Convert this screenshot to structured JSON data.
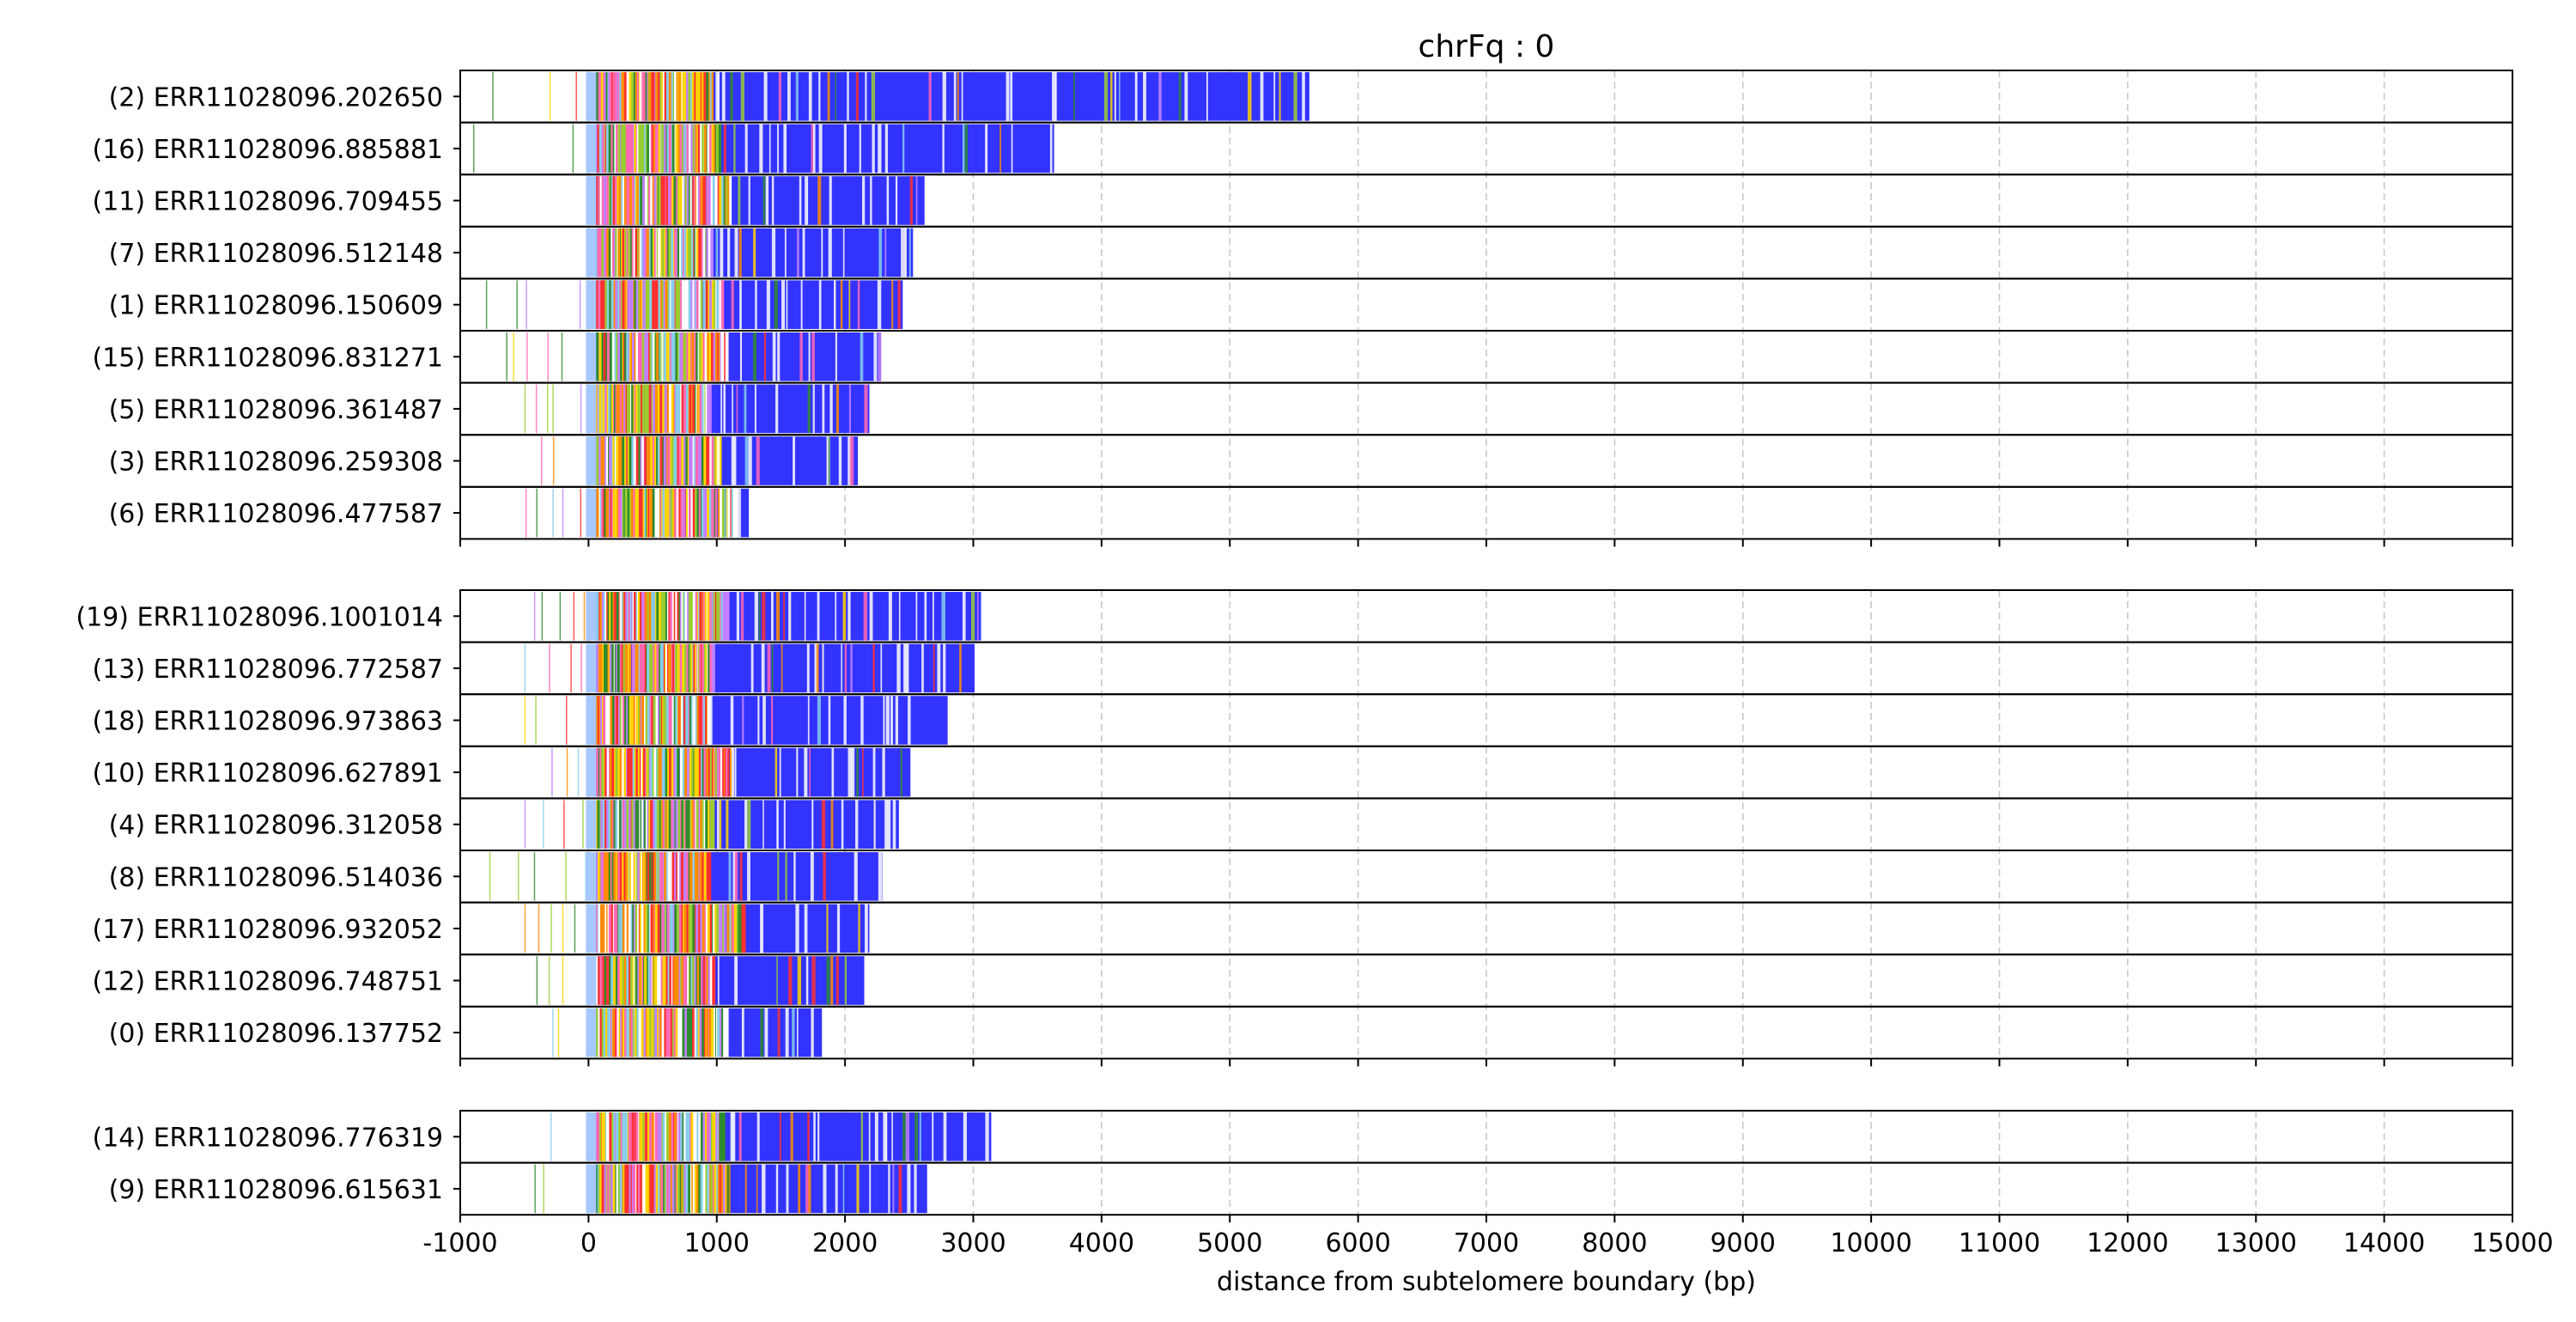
{
  "chart_data": {
    "type": "bar",
    "title": "chrFq : 0",
    "xlabel": "distance from subtelomere boundary (bp)",
    "xlim": [
      -1000,
      15000
    ],
    "xticks": [
      -1000,
      0,
      1000,
      2000,
      3000,
      4000,
      5000,
      6000,
      7000,
      8000,
      9000,
      10000,
      11000,
      12000,
      13000,
      14000,
      15000
    ],
    "xtick_labels": [
      "-1000",
      "0",
      "1000",
      "2000",
      "3000",
      "4000",
      "5000",
      "6000",
      "7000",
      "8000",
      "9000",
      "10000",
      "11000",
      "12000",
      "13000",
      "14000",
      "15000"
    ],
    "grid": "vertical dashed",
    "groups": [
      {
        "reads": [
          {
            "label": "(2) ERR11028096.202650",
            "start": -800,
            "end": 5620
          },
          {
            "label": "(16) ERR11028096.885881",
            "start": -900,
            "end": 3630
          },
          {
            "label": "(11) ERR11028096.709455",
            "start": -800,
            "end": 2620
          },
          {
            "label": "(7) ERR11028096.512148",
            "start": -500,
            "end": 2530
          },
          {
            "label": "(1) ERR11028096.150609",
            "start": -800,
            "end": 2450
          },
          {
            "label": "(15) ERR11028096.831271",
            "start": -800,
            "end": 2280
          },
          {
            "label": "(5) ERR11028096.361487",
            "start": -500,
            "end": 2190
          },
          {
            "label": "(3) ERR11028096.259308",
            "start": -500,
            "end": 2100
          },
          {
            "label": "(6) ERR11028096.477587",
            "start": -800,
            "end": 1250
          }
        ]
      },
      {
        "reads": [
          {
            "label": "(19) ERR11028096.1001014",
            "start": -500,
            "end": 3060
          },
          {
            "label": "(13) ERR11028096.772587",
            "start": -500,
            "end": 3010
          },
          {
            "label": "(18) ERR11028096.973863",
            "start": -500,
            "end": 2800
          },
          {
            "label": "(10) ERR11028096.627891",
            "start": -550,
            "end": 2510
          },
          {
            "label": "(4) ERR11028096.312058",
            "start": -500,
            "end": 2420
          },
          {
            "label": "(8) ERR11028096.514036",
            "start": -900,
            "end": 2290
          },
          {
            "label": "(17) ERR11028096.932052",
            "start": -500,
            "end": 2190
          },
          {
            "label": "(12) ERR11028096.748751",
            "start": -500,
            "end": 2150
          },
          {
            "label": "(0) ERR11028096.137752",
            "start": -450,
            "end": 1820
          }
        ]
      },
      {
        "reads": [
          {
            "label": "(14) ERR11028096.776319",
            "start": -500,
            "end": 3140
          },
          {
            "label": "(9) ERR11028096.615631",
            "start": -550,
            "end": 2640
          }
        ]
      }
    ],
    "colors": {
      "main": "#3333ff",
      "accents": [
        "#ffd400",
        "#ff3030",
        "#ff8c00",
        "#2e8b2e",
        "#ff69b4",
        "#c080ff",
        "#87ceeb",
        "#ffffff",
        "#9acd32"
      ]
    }
  }
}
